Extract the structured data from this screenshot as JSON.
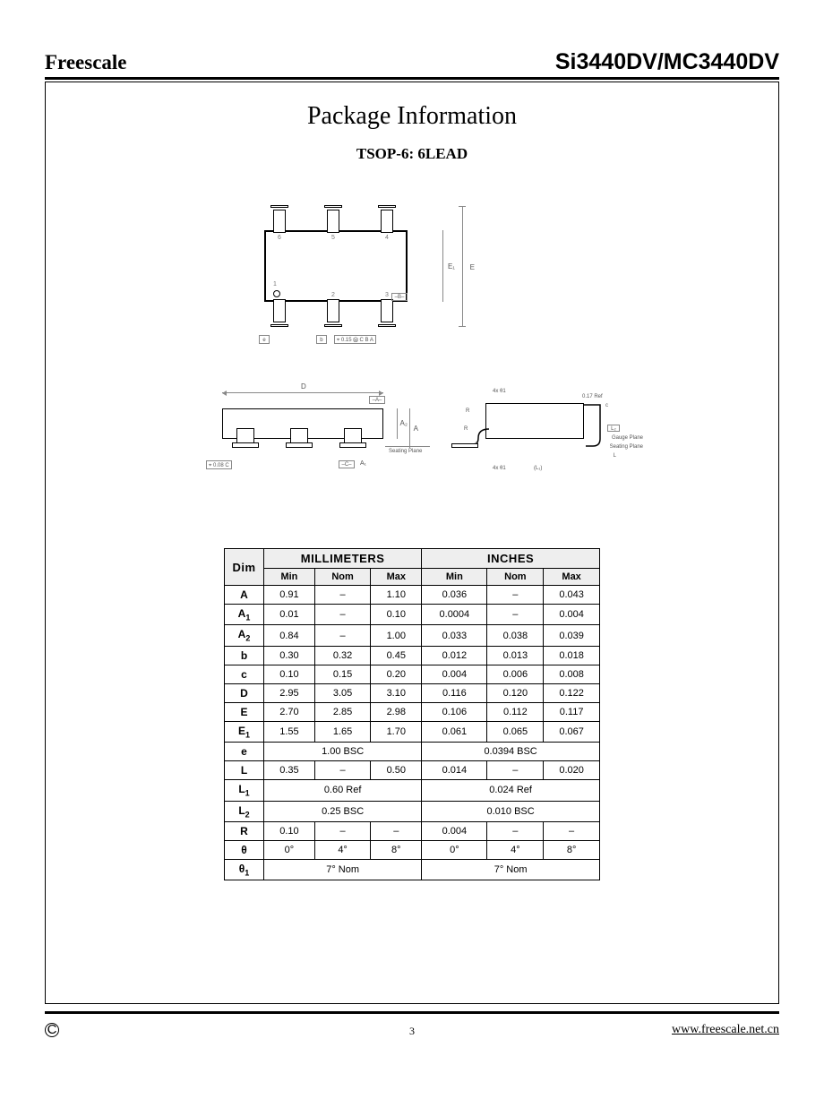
{
  "header": {
    "left": "Freescale",
    "right": "Si3440DV/MC3440DV"
  },
  "title": "Package Information",
  "subtitle": "TSOP-6: 6LEAD",
  "footer": {
    "copyright": "C",
    "page": "3",
    "url": "www.freescale.net.cn"
  },
  "drawing": {
    "topview": {
      "pin_labels": [
        "6",
        "5",
        "4",
        "1",
        "2",
        "3"
      ],
      "E_label": "E",
      "E1_label": "E₁",
      "B_box": "–B–",
      "e_box": "e",
      "b_box": "b",
      "gd_tol": "⌖ 0.15 Ⓜ C B A"
    },
    "sideview": {
      "D_label": "D",
      "A_box": "–A–",
      "A_label": "A",
      "A2_label": "A₂",
      "seating": "Seating Plane",
      "C_box": "–C–",
      "A1_label": "A₁",
      "gd_tol": "⌖ 0.08 C"
    },
    "endview": {
      "fourx_top": "4x θ1",
      "fourx_bot": "4x θ1",
      "ref017": "0.17 Ref",
      "c_label": "c",
      "R1": "R",
      "R2": "R",
      "theta": "θ",
      "L2_box": "L₂",
      "gauge": "Gauge Plane",
      "seating": "Seating Plane",
      "L_label": "L",
      "L1_label": "(L₁)"
    }
  },
  "dim_table": {
    "group_headers": [
      "MILLIMETERS",
      "INCHES"
    ],
    "sub_headers": [
      "Dim",
      "Min",
      "Nom",
      "Max",
      "Min",
      "Nom",
      "Max"
    ],
    "rows": [
      {
        "dim": "A",
        "mm": [
          "0.91",
          "–",
          "1.10"
        ],
        "in": [
          "0.036",
          "–",
          "0.043"
        ]
      },
      {
        "dim": "A<sub>1</sub>",
        "mm": [
          "0.01",
          "–",
          "0.10"
        ],
        "in": [
          "0.0004",
          "–",
          "0.004"
        ]
      },
      {
        "dim": "A<sub>2</sub>",
        "mm": [
          "0.84",
          "–",
          "1.00"
        ],
        "in": [
          "0.033",
          "0.038",
          "0.039"
        ]
      },
      {
        "dim": "b",
        "mm": [
          "0.30",
          "0.32",
          "0.45"
        ],
        "in": [
          "0.012",
          "0.013",
          "0.018"
        ]
      },
      {
        "dim": "c",
        "mm": [
          "0.10",
          "0.15",
          "0.20"
        ],
        "in": [
          "0.004",
          "0.006",
          "0.008"
        ]
      },
      {
        "dim": "D",
        "mm": [
          "2.95",
          "3.05",
          "3.10"
        ],
        "in": [
          "0.116",
          "0.120",
          "0.122"
        ]
      },
      {
        "dim": "E",
        "mm": [
          "2.70",
          "2.85",
          "2.98"
        ],
        "in": [
          "0.106",
          "0.112",
          "0.117"
        ]
      },
      {
        "dim": "E<sub>1</sub>",
        "mm": [
          "1.55",
          "1.65",
          "1.70"
        ],
        "in": [
          "0.061",
          "0.065",
          "0.067"
        ]
      },
      {
        "dim": "e",
        "mm_span": "1.00 BSC",
        "in_span": "0.0394 BSC"
      },
      {
        "dim": "L",
        "mm": [
          "0.35",
          "–",
          "0.50"
        ],
        "in": [
          "0.014",
          "–",
          "0.020"
        ]
      },
      {
        "dim": "L<sub>1</sub>",
        "mm_span": "0.60 Ref",
        "in_span": "0.024 Ref"
      },
      {
        "dim": "L<sub>2</sub>",
        "mm_span": "0.25 BSC",
        "in_span": "0.010 BSC"
      },
      {
        "dim": "R",
        "mm": [
          "0.10",
          "–",
          "–"
        ],
        "in": [
          "0.004",
          "–",
          "–"
        ]
      },
      {
        "dim": "θ",
        "mm": [
          "0°",
          "4°",
          "8°"
        ],
        "in": [
          "0°",
          "4°",
          "8°"
        ]
      },
      {
        "dim": "θ<sub>1</sub>",
        "mm_span": "7° Nom",
        "in_span": "7° Nom"
      }
    ]
  }
}
